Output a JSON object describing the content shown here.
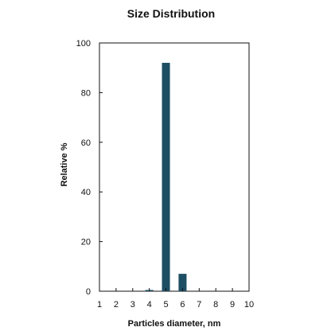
{
  "chart_data": {
    "type": "bar",
    "title": "Size Distribution",
    "xlabel": "Particles diameter, nm",
    "ylabel": "Relative %",
    "x_ticks": [
      "1",
      "2",
      "3",
      "4",
      "5",
      "6",
      "7",
      "8",
      "9",
      "10"
    ],
    "y_ticks": [
      "0",
      "20",
      "40",
      "60",
      "80",
      "100"
    ],
    "xlim": [
      1,
      10
    ],
    "ylim": [
      0,
      100
    ],
    "bars": [
      {
        "x": 4,
        "value": 0.5
      },
      {
        "x": 5,
        "value": 92
      },
      {
        "x": 6,
        "value": 7
      }
    ],
    "bar_color": "#1d4e63",
    "grid": false,
    "legend": "none"
  }
}
